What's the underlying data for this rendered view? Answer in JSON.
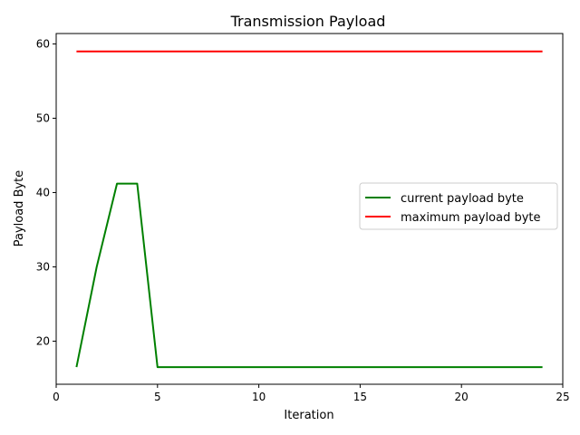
{
  "chart_data": {
    "type": "line",
    "title": "Transmission Payload",
    "xlabel": "Iteration",
    "ylabel": "Payload Byte",
    "xlim": [
      0,
      25
    ],
    "ylim": [
      14.2,
      61.4
    ],
    "xticks": [
      0,
      5,
      10,
      15,
      20,
      25
    ],
    "yticks": [
      20,
      30,
      40,
      50,
      60
    ],
    "grid": false,
    "legend_position": "center-right",
    "x": [
      1,
      2,
      3,
      4,
      5,
      6,
      7,
      8,
      9,
      10,
      11,
      12,
      13,
      14,
      15,
      16,
      17,
      18,
      19,
      20,
      21,
      22,
      23,
      24
    ],
    "series": [
      {
        "name": "current payload byte",
        "color": "#008000",
        "values": [
          16.5,
          30,
          41.2,
          41.2,
          16.5,
          16.5,
          16.5,
          16.5,
          16.5,
          16.5,
          16.5,
          16.5,
          16.5,
          16.5,
          16.5,
          16.5,
          16.5,
          16.5,
          16.5,
          16.5,
          16.5,
          16.5,
          16.5,
          16.5
        ]
      },
      {
        "name": "maximum payload byte",
        "color": "#ff0000",
        "values": [
          59,
          59,
          59,
          59,
          59,
          59,
          59,
          59,
          59,
          59,
          59,
          59,
          59,
          59,
          59,
          59,
          59,
          59,
          59,
          59,
          59,
          59,
          59,
          59
        ]
      }
    ]
  }
}
